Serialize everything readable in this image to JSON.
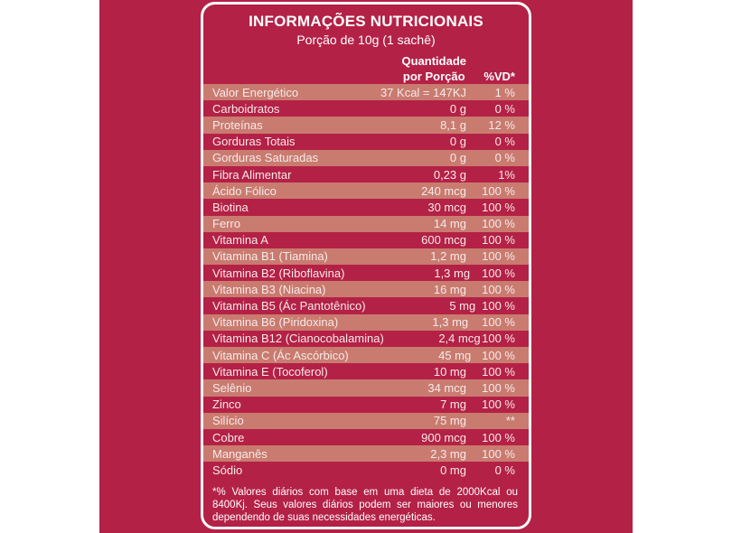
{
  "colors": {
    "field": "#b42146",
    "stripe": "#c97b70",
    "row_text": "#f7eae8",
    "border": "#ffffff"
  },
  "panel": {
    "title": "INFORMAÇÕES NUTRICIONAIS",
    "subtitle": "Porção de 10g (1 sachê)",
    "qty_header_line1": "Quantidade",
    "qty_header_line2": "por Porção",
    "vd_header": "%VD*",
    "rows": [
      {
        "name": "Valor Energético",
        "qty": "37 Kcal = 147KJ",
        "vd": "1 %"
      },
      {
        "name": "Carboidratos",
        "qty": "0 g",
        "vd": "0 %"
      },
      {
        "name": "Proteínas",
        "qty": "8,1 g",
        "vd": "12 %"
      },
      {
        "name": "Gorduras Totais",
        "qty": "0 g",
        "vd": "0 %"
      },
      {
        "name": "Gorduras Saturadas",
        "qty": "0 g",
        "vd": "0 %"
      },
      {
        "name": "Fibra Alimentar",
        "qty": "0,23 g",
        "vd": "1%"
      },
      {
        "name": "Ácido Fólico",
        "qty": "240 mcg",
        "vd": "100 %"
      },
      {
        "name": "Biotina",
        "qty": "30 mcg",
        "vd": "100 %"
      },
      {
        "name": "Ferro",
        "qty": "14 mg",
        "vd": "100 %"
      },
      {
        "name": "Vitamina A",
        "qty": "600 mcg",
        "vd": "100 %"
      },
      {
        "name": "Vitamina B1 (Tiamina)",
        "qty": "1,2 mg",
        "vd": "100 %"
      },
      {
        "name": "Vitamina B2 (Riboflavina)",
        "qty": "1,3 mg",
        "vd": "100 %"
      },
      {
        "name": "Vitamina B3 (Niacina)",
        "qty": "16 mg",
        "vd": "100 %"
      },
      {
        "name": "Vitamina B5 (Ác Pantotênico)",
        "qty": "5 mg",
        "vd": "100 %"
      },
      {
        "name": "Vitamina B6 (Piridoxina)",
        "qty": "1,3 mg",
        "vd": "100 %"
      },
      {
        "name": "Vitamina B12 (Cianocobalamina)",
        "qty": "2,4 mcg",
        "vd": "100 %"
      },
      {
        "name": "Vitamina C (Ác Ascórbico)",
        "qty": "45 mg",
        "vd": "100 %"
      },
      {
        "name": "Vitamina E (Tocoferol)",
        "qty": "10 mg",
        "vd": "100 %"
      },
      {
        "name": "Selênio",
        "qty": "34 mcg",
        "vd": "100 %"
      },
      {
        "name": "Zinco",
        "qty": "7 mg",
        "vd": "100 %"
      },
      {
        "name": "Silício",
        "qty": "75 mg",
        "vd": "**"
      },
      {
        "name": "Cobre",
        "qty": "900 mcg",
        "vd": "100 %"
      },
      {
        "name": "Manganês",
        "qty": "2,3 mg",
        "vd": "100 %"
      },
      {
        "name": "Sódio",
        "qty": "0 mg",
        "vd": "0 %"
      }
    ],
    "footnote": "*% Valores diários com base em uma dieta de 2000Kcal ou 8400Kj. Seus valores diários podem ser maiores ou  menores dependendo de suas necessidades energéticas."
  }
}
